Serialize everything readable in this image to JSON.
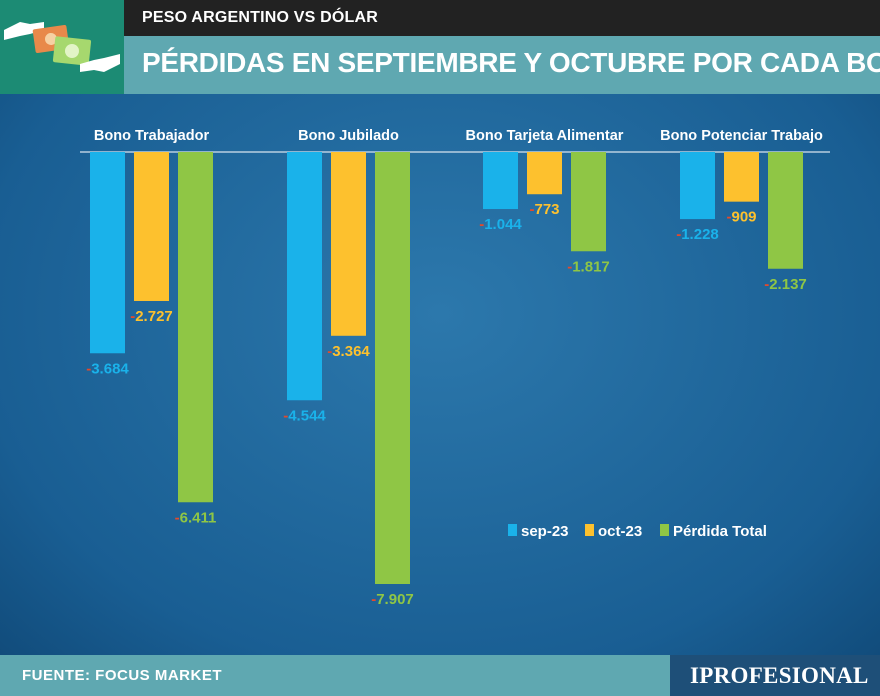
{
  "header": {
    "kicker": "PESO ARGENTINO VS DÓLAR",
    "title": "PÉRDIDAS EN SEPTIEMBRE Y OCTUBRE POR CADA BONO"
  },
  "footer": {
    "source": "FUENTE: FOCUS MARKET",
    "brand": "IPROFESIONAL"
  },
  "logo": {
    "icon": "money-exchange-icon"
  },
  "colors": {
    "sep": "#1ab2ea",
    "oct": "#fdc12e",
    "total": "#8fc645",
    "minus": "#e34a2c"
  },
  "chart_data": {
    "type": "bar",
    "orientation": "downward",
    "categories": [
      "Bono Trabajador",
      "Bono Jubilado",
      "Bono Tarjeta Alimentar",
      "Bono Potenciar Trabajo"
    ],
    "series": [
      {
        "name": "sep-23",
        "values": [
          -3684,
          -4544,
          -1044,
          -1228
        ],
        "labels": [
          "3.684",
          "4.544",
          "1.044",
          "1.228"
        ]
      },
      {
        "name": "oct-23",
        "values": [
          -2727,
          -3364,
          -773,
          -909
        ],
        "labels": [
          "2.727",
          "3.364",
          "773",
          "909"
        ]
      },
      {
        "name": "Pérdida Total",
        "values": [
          -6411,
          -7907,
          -1817,
          -2137
        ],
        "labels": [
          "6.411",
          "7.907",
          "1.817",
          "2.137"
        ]
      }
    ],
    "legend": [
      "sep-23",
      "oct-23",
      "Pérdida Total"
    ],
    "legend_position": "bottom-right",
    "ylim": [
      -7907,
      0
    ],
    "grid": false
  }
}
